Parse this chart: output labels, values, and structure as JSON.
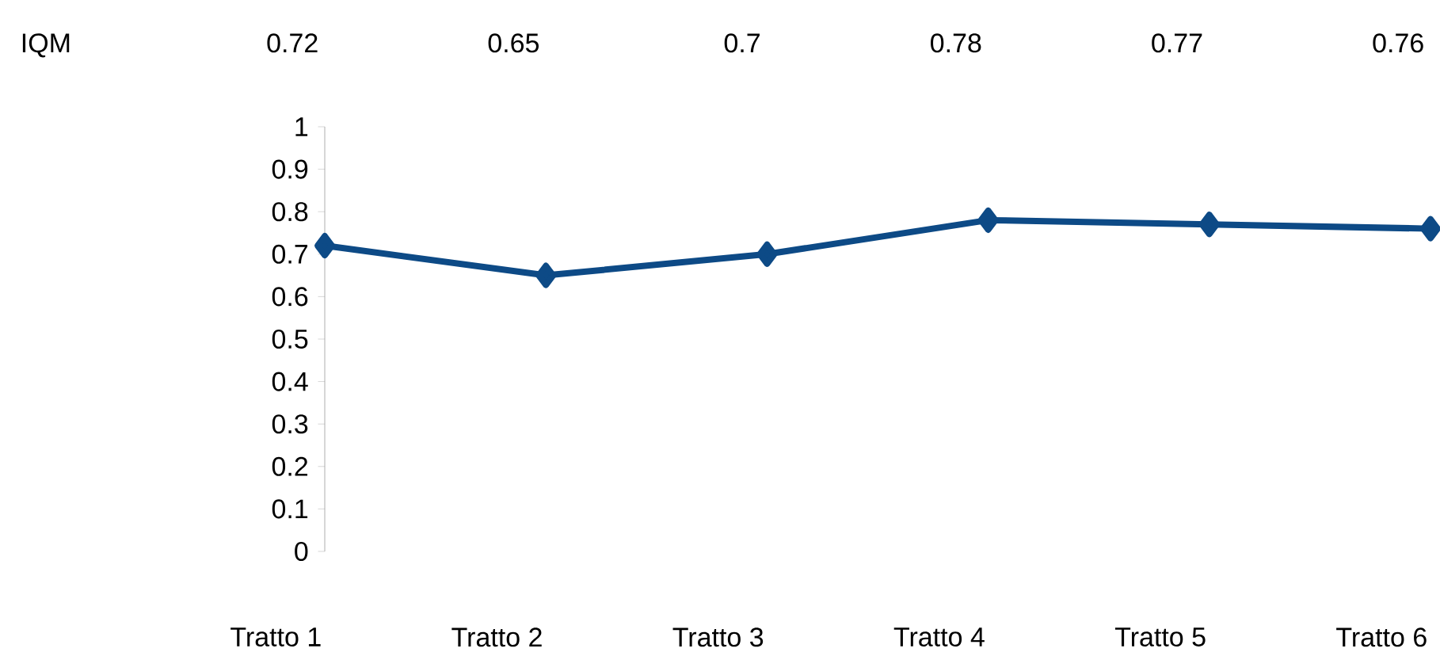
{
  "chart_data": {
    "type": "line",
    "categories": [
      "Tratto 1",
      "Tratto 2",
      "Tratto 3",
      "Tratto 4",
      "Tratto 5",
      "Tratto 6"
    ],
    "series": [
      {
        "name": "IQM",
        "color": "#0d4a86",
        "values": [
          0.72,
          0.65,
          0.7,
          0.78,
          0.77,
          0.76
        ]
      }
    ],
    "ylim": [
      0,
      1
    ],
    "yticks": [
      0,
      0.1,
      0.2,
      0.3,
      0.4,
      0.5,
      0.6,
      0.7,
      0.8,
      0.9,
      1
    ],
    "data_labels": true,
    "marker": "diamond",
    "line_style": "solid"
  }
}
